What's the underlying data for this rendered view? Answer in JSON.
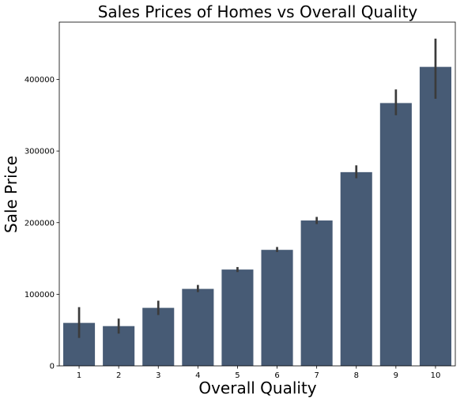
{
  "chart_data": {
    "type": "bar",
    "title": "Sales Prices of Homes vs Overall Quality",
    "xlabel": "Overall Quality",
    "ylabel": "Sale Price",
    "categories": [
      "1",
      "2",
      "3",
      "4",
      "5",
      "6",
      "7",
      "8",
      "9",
      "10"
    ],
    "values": [
      60000,
      55500,
      81000,
      107500,
      134500,
      162000,
      203000,
      270500,
      367000,
      417500
    ],
    "error_bars": [
      [
        39000,
        82000
      ],
      [
        45000,
        66000
      ],
      [
        71000,
        91000
      ],
      [
        103000,
        113000
      ],
      [
        131000,
        138000
      ],
      [
        159000,
        166000
      ],
      [
        198000,
        208000
      ],
      [
        262000,
        280000
      ],
      [
        350000,
        386000
      ],
      [
        373000,
        457000
      ]
    ],
    "ylim": [
      0,
      480000
    ],
    "yticks": [
      0,
      100000,
      200000,
      300000,
      400000
    ],
    "ytick_labels": [
      "0",
      "100000",
      "200000",
      "300000",
      "400000"
    ],
    "grid": false,
    "bar_color": "#475b75",
    "error_color": "#3b3b3b"
  }
}
